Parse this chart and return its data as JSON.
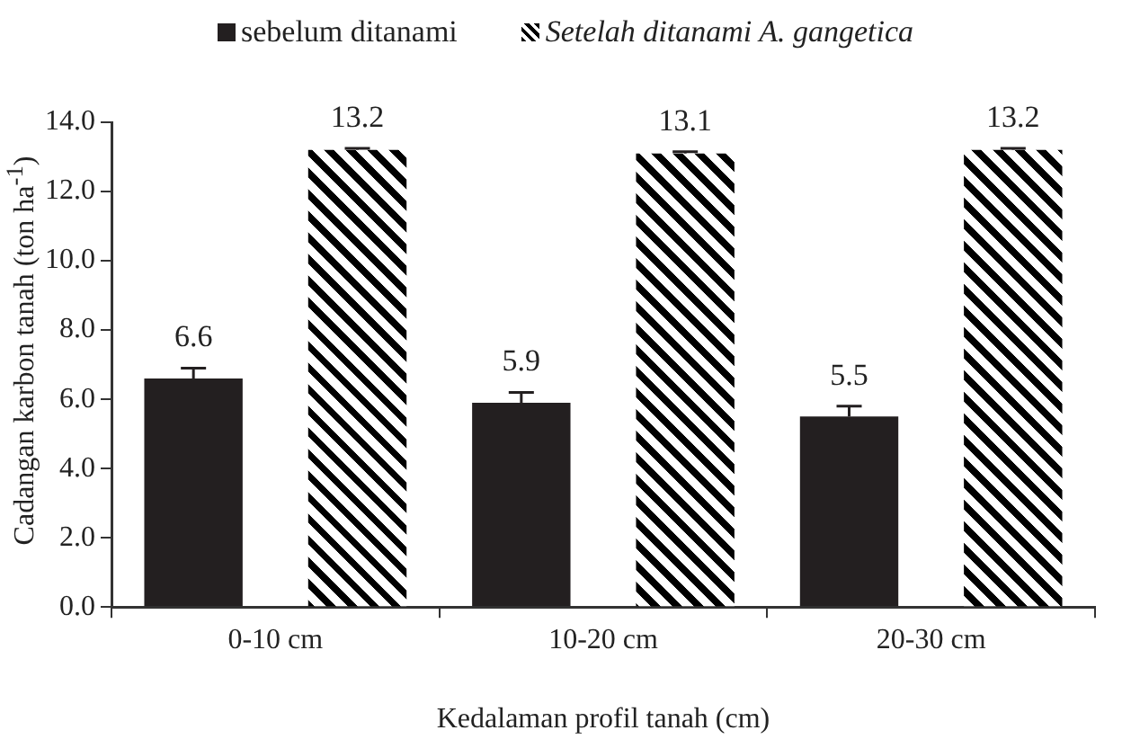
{
  "chart_data": {
    "type": "bar",
    "xlabel": "Kedalaman profil tanah (cm)",
    "ylabel": "Cadangan karbon tanah (ton ha$^{-1}$)",
    "categories": [
      "0-10 cm",
      "10-20 cm",
      "20-30 cm"
    ],
    "series": [
      {
        "name": "sebelum ditanami",
        "color": "#231f20",
        "values": [
          6.6,
          5.9,
          5.5
        ],
        "errors": [
          0.3,
          0.3,
          0.3
        ]
      },
      {
        "name": "Setelah ditanami A. gangetica",
        "color": "#000000",
        "values": [
          13.2,
          13.1,
          13.2
        ],
        "errors": [
          0.05,
          0.05,
          0.05
        ]
      }
    ],
    "ylim": [
      0,
      14
    ],
    "yticks": [
      {
        "value": 0,
        "label": "0.0"
      },
      {
        "value": 2,
        "label": "2.0"
      },
      {
        "value": 4,
        "label": "4.0"
      },
      {
        "value": 6,
        "label": "6.0"
      },
      {
        "value": 8,
        "label": "8.0"
      },
      {
        "value": 10,
        "label": "10.0"
      },
      {
        "value": 12,
        "label": "12.0"
      },
      {
        "value": 14,
        "label": "14.0"
      }
    ],
    "data_labels": true,
    "legend": "top",
    "grid": false
  }
}
